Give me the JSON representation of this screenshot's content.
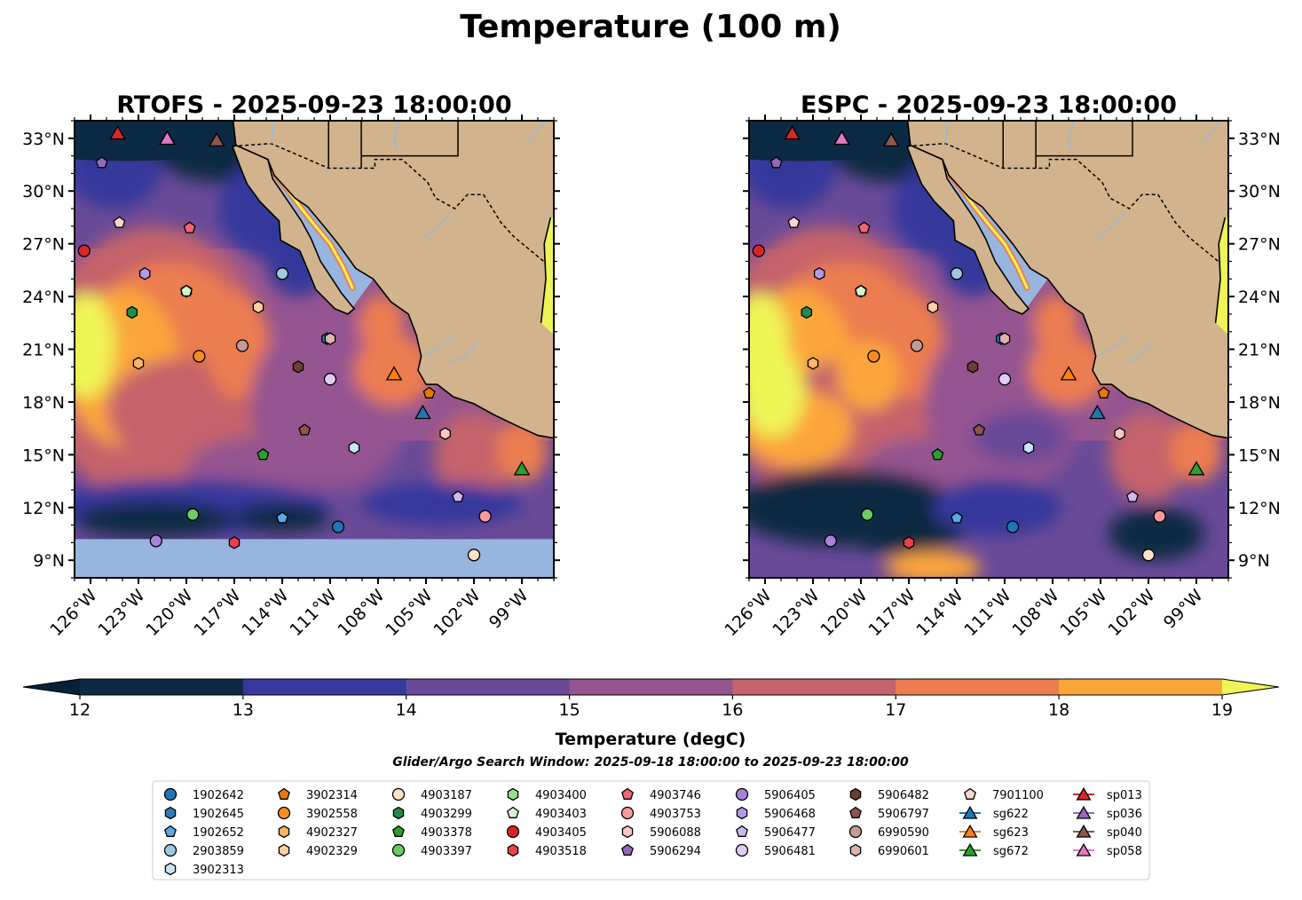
{
  "title": "Temperature (100 m)",
  "colorbar": {
    "label": "Temperature (degC)",
    "ticks": [
      "12",
      "13",
      "14",
      "15",
      "16",
      "17",
      "18",
      "19"
    ],
    "colors": [
      "#0c2a43",
      "#36399b",
      "#6a4a98",
      "#955590",
      "#c4636b",
      "#ec7d4f",
      "#fba63a",
      "#eef457"
    ],
    "under_color": "#07203a",
    "over_color": "#eef457"
  },
  "search_window": "Glider/Argo Search Window: 2025-09-18 18:00:00 to 2025-09-23 18:00:00",
  "land_color": "#d1b48d",
  "nodata_color": "#97b5df",
  "chart_data": [
    {
      "type": "heatmap",
      "title": "RTOFS - 2025-09-23 18:00:00",
      "xlim": [
        -127,
        -97
      ],
      "ylim": [
        8,
        34
      ],
      "xticks": [
        "126°W",
        "123°W",
        "120°W",
        "117°W",
        "114°W",
        "111°W",
        "108°W",
        "105°W",
        "102°W",
        "99°W"
      ],
      "yticks": [
        "9°N",
        "12°N",
        "15°N",
        "18°N",
        "21°N",
        "24°N",
        "27°N",
        "30°N",
        "33°N"
      ],
      "ytick_side": "left",
      "value_range": [
        12,
        19
      ],
      "nodata_below_lat": 10.2
    },
    {
      "type": "heatmap",
      "title": "ESPC - 2025-09-23 18:00:00",
      "xlim": [
        -127,
        -97
      ],
      "ylim": [
        8,
        34
      ],
      "xticks": [
        "126°W",
        "123°W",
        "120°W",
        "117°W",
        "114°W",
        "111°W",
        "108°W",
        "105°W",
        "102°W",
        "99°W"
      ],
      "yticks": [
        "9°N",
        "12°N",
        "15°N",
        "18°N",
        "21°N",
        "24°N",
        "27°N",
        "30°N",
        "33°N"
      ],
      "ytick_side": "right",
      "value_range": [
        12,
        19
      ],
      "nodata_below_lat": null
    }
  ],
  "observations": [
    {
      "id": "1902642",
      "shape": "circle",
      "color": "#1f77b4",
      "lon": -110.5,
      "lat": 10.9
    },
    {
      "id": "1902645",
      "shape": "hexagon",
      "color": "#2b7bba",
      "lon": -111.2,
      "lat": 21.6
    },
    {
      "id": "1902652",
      "shape": "pentagon",
      "color": "#5aa9e6",
      "lon": -114.0,
      "lat": 11.4
    },
    {
      "id": "2903859",
      "shape": "circle",
      "color": "#9ecae1",
      "lon": -114.0,
      "lat": 25.3
    },
    {
      "id": "3902313",
      "shape": "hexagon",
      "color": "#c6e4f8",
      "lon": -109.5,
      "lat": 15.4
    },
    {
      "id": "3902314",
      "shape": "pentagon",
      "color": "#e6770c",
      "lon": -104.8,
      "lat": 18.5
    },
    {
      "id": "3902558",
      "shape": "circle",
      "color": "#f58b23",
      "lon": -119.2,
      "lat": 20.6
    },
    {
      "id": "4902327",
      "shape": "hexagon",
      "color": "#fdb462",
      "lon": -123.0,
      "lat": 20.2
    },
    {
      "id": "4902329",
      "shape": "hexagon",
      "color": "#fdd0a2",
      "lon": -115.5,
      "lat": 23.4
    },
    {
      "id": "4903187",
      "shape": "circle",
      "color": "#fee3c8",
      "lon": -102.0,
      "lat": 9.3
    },
    {
      "id": "4903299",
      "shape": "hexagon",
      "color": "#238b45",
      "lon": -123.4,
      "lat": 23.1
    },
    {
      "id": "4903378",
      "shape": "pentagon",
      "color": "#2ca02c",
      "lon": -115.2,
      "lat": 15.0
    },
    {
      "id": "4903397",
      "shape": "circle",
      "color": "#6acc64",
      "lon": -119.6,
      "lat": 11.6
    },
    {
      "id": "4903400",
      "shape": "hexagon",
      "color": "#98df8a",
      "lon": -120.0,
      "lat": 24.3
    },
    {
      "id": "4903403",
      "shape": "pentagon",
      "color": "#d5f5d0",
      "lon": -120.0,
      "lat": 24.3
    },
    {
      "id": "4903405",
      "shape": "circle",
      "color": "#d62728",
      "lon": -126.4,
      "lat": 26.6
    },
    {
      "id": "4903518",
      "shape": "hexagon",
      "color": "#e8434a",
      "lon": -117.0,
      "lat": 10.0
    },
    {
      "id": "4903746",
      "shape": "pentagon",
      "color": "#f06670",
      "lon": -119.8,
      "lat": 27.9
    },
    {
      "id": "4903753",
      "shape": "circle",
      "color": "#f79a9a",
      "lon": -101.3,
      "lat": 11.5
    },
    {
      "id": "5906088",
      "shape": "hexagon",
      "color": "#fbc6c6",
      "lon": -103.8,
      "lat": 16.2
    },
    {
      "id": "5906294",
      "shape": "pentagon",
      "color": "#9467bd",
      "lon": -125.3,
      "lat": 31.6
    },
    {
      "id": "5906405",
      "shape": "circle",
      "color": "#a883d6",
      "lon": -121.9,
      "lat": 10.1
    },
    {
      "id": "5906468",
      "shape": "hexagon",
      "color": "#b39ae6",
      "lon": -122.6,
      "lat": 25.3
    },
    {
      "id": "5906477",
      "shape": "pentagon",
      "color": "#cdb8f0",
      "lon": -103.0,
      "lat": 12.6
    },
    {
      "id": "5906481",
      "shape": "circle",
      "color": "#e0cbf7",
      "lon": -111.0,
      "lat": 19.3
    },
    {
      "id": "5906482",
      "shape": "hexagon",
      "color": "#6b3f34",
      "lon": -113.0,
      "lat": 20.0
    },
    {
      "id": "5906797",
      "shape": "pentagon",
      "color": "#8c564b",
      "lon": -112.6,
      "lat": 16.4
    },
    {
      "id": "6990590",
      "shape": "circle",
      "color": "#c49c94",
      "lon": -116.5,
      "lat": 21.2
    },
    {
      "id": "6990601",
      "shape": "hexagon",
      "color": "#deb3aa",
      "lon": -111.0,
      "lat": 21.6
    },
    {
      "id": "7901100",
      "shape": "pentagon",
      "color": "#fbd5d0",
      "lon": -124.2,
      "lat": 28.2
    },
    {
      "id": "sg622",
      "shape": "triangle",
      "color": "#1f77b4",
      "lon": -105.2,
      "lat": 17.4
    },
    {
      "id": "sg623",
      "shape": "triangle",
      "color": "#ff7f0e",
      "lon": -107.0,
      "lat": 19.6
    },
    {
      "id": "sg672",
      "shape": "triangle",
      "color": "#2ca02c",
      "lon": -99.0,
      "lat": 14.2
    },
    {
      "id": "sp013",
      "shape": "triangle",
      "color": "#d62728",
      "lon": -124.3,
      "lat": 33.3
    },
    {
      "id": "sp036",
      "shape": "triangle",
      "color": "#9467bd",
      "lon": -121.2,
      "lat": 33.0
    },
    {
      "id": "sp040",
      "shape": "triangle",
      "color": "#8c564b",
      "lon": -118.1,
      "lat": 32.9
    },
    {
      "id": "sp058",
      "shape": "triangle",
      "color": "#e377c2",
      "lon": -121.2,
      "lat": 33.0
    }
  ]
}
